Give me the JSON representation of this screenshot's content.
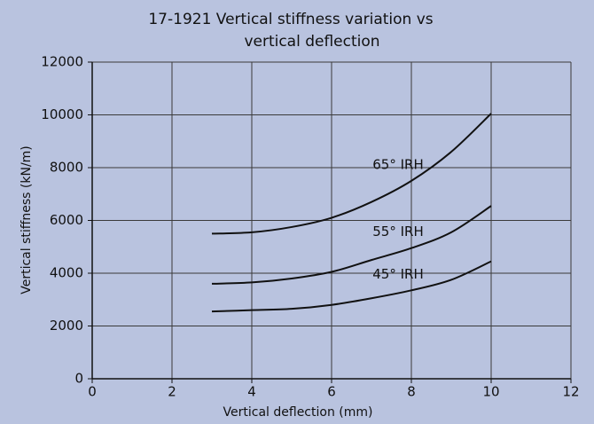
{
  "chart_data": {
    "type": "line",
    "title": [
      "17-1921 Vertical stiffness variation vs",
      "vertical deflection"
    ],
    "x_label": "Vertical deflection (mm)",
    "y_label": "Vertical stiffness (kN/m)",
    "x": [
      3,
      4,
      5,
      6,
      7,
      8,
      9,
      10
    ],
    "series": [
      {
        "name": "65° IRH",
        "color": "#111111",
        "values": [
          5500,
          5550,
          5750,
          6100,
          6700,
          7500,
          8600,
          10050
        ]
      },
      {
        "name": "55° IRH",
        "color": "#111111",
        "values": [
          3600,
          3650,
          3800,
          4050,
          4500,
          4950,
          5550,
          6550
        ]
      },
      {
        "name": "45° IRH",
        "color": "#111111",
        "values": [
          2550,
          2600,
          2650,
          2800,
          3050,
          3350,
          3750,
          4450
        ]
      }
    ],
    "xlim": [
      0,
      12
    ],
    "xticks": [
      0,
      2,
      4,
      6,
      8,
      10,
      12
    ],
    "ylim": [
      0,
      12000
    ],
    "yticks": [
      0,
      2000,
      4000,
      6000,
      8000,
      10000,
      12000
    ],
    "grid": true
  }
}
